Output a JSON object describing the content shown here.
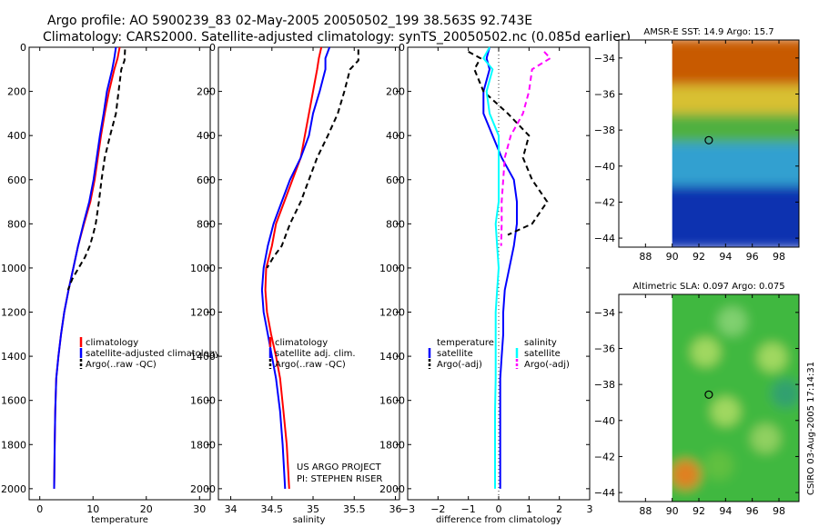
{
  "header": {
    "line1": "Argo profile: AO 5900239_83 02-May-2005 20050502_199 38.563S 92.743E",
    "line2": "Climatology: CARS2000. Satellite-adjusted climatology: synTS_20050502.nc (0.085d earlier)"
  },
  "side_stamp": "CSIRO 03-Aug-2005 17:14:31",
  "project_note": {
    "line1": "US ARGO PROJECT",
    "line2": "PI: STEPHEN RISER"
  },
  "colors": {
    "red": "#ff0000",
    "blue": "#0000ff",
    "black": "#000000",
    "cyan": "#00ffff",
    "magenta": "#ff00ff"
  },
  "chart_data": [
    {
      "id": "temperature",
      "type": "line",
      "xlabel": "temperature",
      "ylabel": "",
      "xlim": [
        -2,
        32
      ],
      "ylim": [
        0,
        2050
      ],
      "y_reversed": true,
      "xticks": [
        0,
        10,
        20,
        30
      ],
      "yticks": [
        0,
        200,
        400,
        600,
        800,
        1000,
        1200,
        1400,
        1600,
        1800,
        2000
      ],
      "legend": [
        "climatology",
        "satellite-adjusted climatology",
        "Argo(..raw -QC)"
      ],
      "legend_position": "lower-right",
      "series": [
        {
          "name": "climatology",
          "color": "#ff0000",
          "dash": "",
          "x": [
            15.0,
            14.6,
            14.0,
            13.0,
            12.2,
            11.5,
            10.9,
            10.3,
            9.5,
            8.3,
            7.2,
            6.3,
            5.4,
            4.6,
            4.0,
            3.5,
            3.1,
            2.9,
            2.8,
            2.7
          ],
          "y": [
            0,
            50,
            100,
            200,
            300,
            400,
            500,
            600,
            700,
            800,
            900,
            1000,
            1100,
            1200,
            1300,
            1400,
            1500,
            1650,
            1800,
            2000
          ]
        },
        {
          "name": "satellite-adjusted climatology",
          "color": "#0000ff",
          "dash": "",
          "x": [
            14.3,
            14.0,
            13.6,
            12.6,
            12.0,
            11.3,
            10.7,
            10.1,
            9.3,
            8.2,
            7.2,
            6.3,
            5.4,
            4.6,
            4.0,
            3.5,
            3.1,
            2.9,
            2.8,
            2.7
          ],
          "y": [
            0,
            50,
            100,
            200,
            300,
            400,
            500,
            600,
            700,
            800,
            900,
            1000,
            1100,
            1200,
            1300,
            1400,
            1500,
            1650,
            1800,
            2000
          ]
        },
        {
          "name": "Argo(..raw -QC)",
          "color": "#000000",
          "dash": "6,4",
          "x": [
            16.0,
            15.9,
            15.3,
            14.8,
            14.3,
            13.2,
            12.2,
            11.6,
            11.1,
            10.5,
            10.0,
            9.4,
            8.5,
            7.3,
            6.1,
            5.3
          ],
          "y": [
            10,
            60,
            100,
            200,
            300,
            400,
            500,
            600,
            700,
            800,
            850,
            900,
            950,
            1000,
            1050,
            1100
          ]
        }
      ]
    },
    {
      "id": "salinity",
      "type": "line",
      "xlabel": "salinity",
      "ylabel": "",
      "xlim": [
        33.85,
        36.05
      ],
      "ylim": [
        0,
        2050
      ],
      "y_reversed": true,
      "xticks": [
        34,
        34.5,
        35,
        35.5,
        36
      ],
      "yticks": [
        0,
        200,
        400,
        600,
        800,
        1000,
        1200,
        1400,
        1600,
        1800,
        2000
      ],
      "legend": [
        "climatology",
        "satellite adj. clim.",
        "Argo(..raw -QC)"
      ],
      "legend_position": "lower-right",
      "series": [
        {
          "name": "climatology",
          "color": "#ff0000",
          "dash": "",
          "x": [
            35.1,
            35.07,
            35.05,
            35.0,
            34.95,
            34.9,
            34.85,
            34.75,
            34.65,
            34.55,
            34.5,
            34.43,
            34.42,
            34.44,
            34.49,
            34.55,
            34.6,
            34.64,
            34.68,
            34.71
          ],
          "y": [
            0,
            50,
            100,
            200,
            300,
            400,
            500,
            600,
            700,
            800,
            900,
            1000,
            1100,
            1200,
            1300,
            1400,
            1500,
            1650,
            1800,
            2000
          ]
        },
        {
          "name": "satellite adj. clim.",
          "color": "#0000ff",
          "dash": "",
          "x": [
            35.2,
            35.15,
            35.15,
            35.08,
            35.0,
            34.95,
            34.85,
            34.72,
            34.62,
            34.52,
            34.45,
            34.4,
            34.38,
            34.4,
            34.45,
            34.5,
            34.55,
            34.6,
            34.63,
            34.66
          ],
          "y": [
            0,
            50,
            100,
            200,
            300,
            400,
            500,
            600,
            700,
            800,
            900,
            1000,
            1100,
            1200,
            1300,
            1400,
            1500,
            1650,
            1800,
            2000
          ]
        },
        {
          "name": "Argo(..raw -QC)",
          "color": "#000000",
          "dash": "6,4",
          "x": [
            35.55,
            35.55,
            35.45,
            35.38,
            35.3,
            35.18,
            35.05,
            34.95,
            34.85,
            34.72,
            34.62,
            34.52,
            34.44
          ],
          "y": [
            10,
            60,
            100,
            200,
            300,
            400,
            500,
            600,
            700,
            800,
            900,
            950,
            1000
          ]
        }
      ]
    },
    {
      "id": "difference",
      "type": "line",
      "xlabel": "difference from climatology",
      "ylabel": "",
      "xlim": [
        -3,
        3
      ],
      "ylim": [
        0,
        2050
      ],
      "y_reversed": true,
      "xticks": [
        -3,
        -2,
        -1,
        0,
        1,
        2,
        3
      ],
      "yticks": [
        0,
        200,
        400,
        600,
        800,
        1000,
        1200,
        1400,
        1600,
        1800,
        2000
      ],
      "legend_groups": [
        {
          "title": "temperature",
          "items": [
            "satellite",
            "Argo(-adj)"
          ]
        },
        {
          "title": "salinity",
          "items": [
            "satellite",
            "Argo(-adj)"
          ]
        }
      ],
      "legend_position": "lower-center",
      "series": [
        {
          "name": "satellite",
          "group": "temperature",
          "color": "#0000ff",
          "dash": "",
          "x": [
            -0.3,
            -0.4,
            -0.3,
            -0.5,
            -0.5,
            -0.2,
            0.1,
            0.5,
            0.6,
            0.6,
            0.5,
            0.35,
            0.2,
            0.15,
            0.15,
            0.1,
            0.05,
            0.05,
            0.05,
            0.05
          ],
          "y": [
            0,
            50,
            100,
            200,
            300,
            400,
            500,
            600,
            700,
            800,
            900,
            1000,
            1100,
            1200,
            1300,
            1400,
            1500,
            1650,
            1800,
            2000
          ]
        },
        {
          "name": "Argo(-adj)",
          "group": "temperature",
          "color": "#000000",
          "dash": "6,4",
          "x": [
            -1.0,
            -0.6,
            -0.8,
            -0.5,
            0.3,
            1.0,
            0.8,
            1.1,
            1.6,
            1.1,
            0.3
          ],
          "y": [
            20,
            50,
            100,
            200,
            300,
            400,
            500,
            600,
            700,
            800,
            850
          ]
        },
        {
          "name": "satellite",
          "group": "salinity",
          "color": "#00ffff",
          "dash": "",
          "x": [
            -0.3,
            -0.5,
            -0.2,
            -0.4,
            -0.3,
            0.0,
            0.0,
            0.0,
            0.0,
            -0.1,
            -0.05,
            0.0,
            -0.05,
            -0.1,
            -0.1,
            -0.1,
            -0.1,
            -0.12,
            -0.12,
            -0.12
          ],
          "y": [
            0,
            50,
            100,
            200,
            300,
            400,
            500,
            600,
            700,
            800,
            900,
            1000,
            1100,
            1200,
            1300,
            1400,
            1500,
            1650,
            1800,
            2000
          ]
        },
        {
          "name": "Argo(-adj)",
          "group": "salinity",
          "color": "#ff00ff",
          "dash": "6,4",
          "x": [
            1.5,
            1.7,
            1.1,
            1.0,
            0.8,
            0.4,
            0.2,
            0.15,
            0.1,
            0.1,
            0.08
          ],
          "y": [
            20,
            50,
            100,
            200,
            300,
            400,
            500,
            600,
            700,
            800,
            900
          ]
        }
      ]
    },
    {
      "id": "sst_map",
      "type": "heatmap",
      "title": "AMSR-E SST: 14.9 Argo: 15.7",
      "xlim": [
        86,
        99.5
      ],
      "ylim": [
        -44.5,
        -33
      ],
      "xticks": [
        88,
        90,
        92,
        94,
        96,
        98
      ],
      "yticks": [
        -34,
        -36,
        -38,
        -40,
        -42,
        -44
      ],
      "data_x_min": 90,
      "marker": {
        "lon": 92.743,
        "lat": -38.563
      },
      "zones": [
        {
          "lat_min": -35.6,
          "lat_max": -33,
          "color": "#c85a00"
        },
        {
          "lat_min": -37.2,
          "lat_max": -35.6,
          "color": "#d8c030"
        },
        {
          "lat_min": -38.8,
          "lat_max": -37.2,
          "color": "#50b040"
        },
        {
          "lat_min": -41.2,
          "lat_max": -38.8,
          "color": "#30a0d0"
        },
        {
          "lat_min": -44.5,
          "lat_max": -41.2,
          "color": "#1030b0"
        }
      ]
    },
    {
      "id": "sla_map",
      "type": "heatmap",
      "title": "Altimetric SLA: 0.097 Argo: 0.075",
      "xlim": [
        86,
        99.5
      ],
      "ylim": [
        -44.5,
        -33
      ],
      "xticks": [
        88,
        90,
        92,
        94,
        96,
        98
      ],
      "yticks": [
        -34,
        -36,
        -38,
        -40,
        -42,
        -44
      ],
      "data_x_min": 90,
      "marker": {
        "lon": 92.743,
        "lat": -38.563
      },
      "base_color": "#40b840",
      "blobs": [
        {
          "lon": 92.5,
          "lat": -36.2,
          "color": "#a0d860"
        },
        {
          "lon": 94.5,
          "lat": -34.5,
          "color": "#80d070"
        },
        {
          "lon": 97.5,
          "lat": -36.5,
          "color": "#a0d860"
        },
        {
          "lon": 94.0,
          "lat": -39.5,
          "color": "#a0d860"
        },
        {
          "lon": 97.0,
          "lat": -41.0,
          "color": "#90d060"
        },
        {
          "lon": 91.0,
          "lat": -43.0,
          "color": "#e08020"
        },
        {
          "lon": 93.5,
          "lat": -42.5,
          "color": "#60c040"
        },
        {
          "lon": 98.5,
          "lat": -38.5,
          "color": "#30a070"
        }
      ]
    }
  ]
}
